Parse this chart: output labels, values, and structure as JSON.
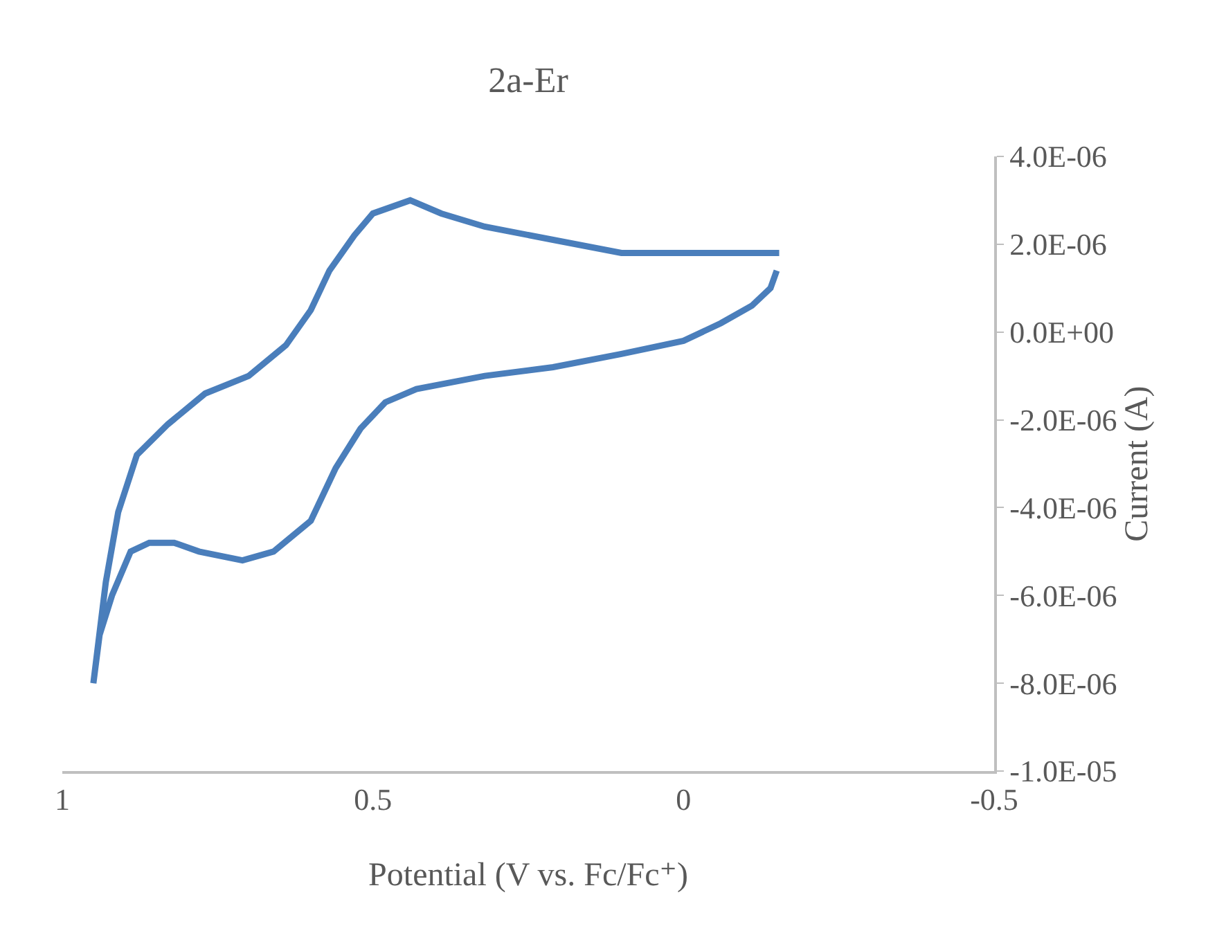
{
  "chart_data": {
    "type": "line",
    "title": "2a-Er",
    "xlabel": "Potential (V vs. Fc/Fc⁺)",
    "ylabel": "Current (A)",
    "xlim": [
      1,
      -0.5
    ],
    "xticks": [
      1,
      0.5,
      0,
      -0.5
    ],
    "ylim": [
      -1e-05,
      4e-06
    ],
    "yticks": [
      {
        "value": 4e-06,
        "label": "4.0E-06"
      },
      {
        "value": 2e-06,
        "label": "2.0E-06"
      },
      {
        "value": 0,
        "label": "0.0E+00"
      },
      {
        "value": -2e-06,
        "label": "-2.0E-06"
      },
      {
        "value": -4e-06,
        "label": "-4.0E-06"
      },
      {
        "value": -6e-06,
        "label": "-6.0E-06"
      },
      {
        "value": -8e-06,
        "label": "-8.0E-06"
      },
      {
        "value": -1e-05,
        "label": "-1.0E-05"
      }
    ],
    "grid": false,
    "marker": "none",
    "line_style": "solid",
    "series": [
      {
        "color": "#4a7ebb",
        "x": [
          -0.154,
          -0.1,
          0,
          0.1,
          0.21,
          0.32,
          0.39,
          0.44,
          0.5,
          0.53,
          0.57,
          0.6,
          0.64,
          0.7,
          0.77,
          0.83,
          0.88,
          0.91,
          0.93,
          0.95,
          0.94,
          0.92,
          0.89,
          0.86,
          0.82,
          0.78,
          0.71,
          0.66,
          0.6,
          0.56,
          0.52,
          0.48,
          0.43,
          0.32,
          0.21,
          0.1,
          0,
          -0.06,
          -0.11,
          -0.14,
          -0.15
        ],
        "values": [
          1.8e-06,
          1.8e-06,
          1.8e-06,
          1.8e-06,
          2.1e-06,
          2.4e-06,
          2.7e-06,
          3e-06,
          2.7e-06,
          2.2e-06,
          1.4e-06,
          5e-07,
          -3e-07,
          -1e-06,
          -1.4e-06,
          -2.1e-06,
          -2.8e-06,
          -4.1e-06,
          -5.7e-06,
          -8e-06,
          -6.9e-06,
          -6e-06,
          -5e-06,
          -4.8e-06,
          -4.8e-06,
          -5e-06,
          -5.2e-06,
          -5e-06,
          -4.3e-06,
          -3.1e-06,
          -2.2e-06,
          -1.6e-06,
          -1.3e-06,
          -1e-06,
          -8e-07,
          -5e-07,
          -2e-07,
          2e-07,
          6e-07,
          1e-06,
          1.4e-06
        ]
      }
    ]
  }
}
